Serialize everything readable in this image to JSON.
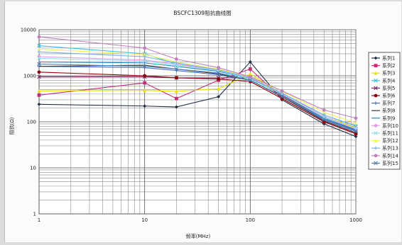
{
  "chart_data": {
    "type": "line",
    "title": "BSCFC1309阻抗曲线图",
    "xlabel": "频率(MHz)",
    "ylabel": "阻抗(Ω)",
    "x_scale": "log",
    "y_scale": "log",
    "xlim": [
      1,
      1000
    ],
    "ylim": [
      1,
      10000
    ],
    "x_ticks": [
      "1",
      "10",
      "100",
      "1000"
    ],
    "y_ticks": [
      "10000",
      "1000",
      "100",
      "10",
      "1"
    ],
    "grid": true,
    "legend_position": "right",
    "x": [
      1,
      10,
      20,
      50,
      100,
      200,
      500,
      1000
    ],
    "series": [
      {
        "name": "系列1",
        "color": "#1f2a44",
        "marker": "diamond",
        "values": [
          240,
          220,
          210,
          350,
          2000,
          300,
          90,
          48
        ]
      },
      {
        "name": "系列2",
        "color": "#c0307a",
        "marker": "square",
        "values": [
          380,
          700,
          320,
          800,
          1400,
          320,
          100,
          55
        ]
      },
      {
        "name": "系列3",
        "color": "#e8e000",
        "marker": "triangle",
        "values": [
          470,
          480,
          460,
          520,
          1100,
          400,
          130,
          75
        ]
      },
      {
        "name": "系列4",
        "color": "#3fbfe0",
        "marker": "x",
        "values": [
          4500,
          3000,
          1800,
          1300,
          900,
          420,
          140,
          80
        ]
      },
      {
        "name": "系列5",
        "color": "#7a2a6a",
        "marker": "x",
        "values": [
          950,
          950,
          900,
          900,
          900,
          380,
          120,
          68
        ]
      },
      {
        "name": "系列6",
        "color": "#8b0000",
        "marker": "circle",
        "values": [
          1200,
          1000,
          900,
          850,
          750,
          320,
          100,
          55
        ]
      },
      {
        "name": "系列7",
        "color": "#4a6fc0",
        "marker": "plus",
        "values": [
          1600,
          1500,
          1300,
          1050,
          800,
          350,
          110,
          62
        ]
      },
      {
        "name": "系列8",
        "color": "#3a3a3a",
        "marker": "none",
        "values": [
          1600,
          1700,
          1400,
          1100,
          800,
          350,
          105,
          58
        ]
      },
      {
        "name": "系列9",
        "color": "#1e8fc8",
        "marker": "none",
        "values": [
          2000,
          1900,
          1600,
          1250,
          850,
          400,
          120,
          65
        ]
      },
      {
        "name": "系列10",
        "color": "#e0a0e0",
        "marker": "circle",
        "values": [
          2600,
          2200,
          1800,
          1350,
          900,
          420,
          130,
          72
        ]
      },
      {
        "name": "系列11",
        "color": "#9adcf0",
        "marker": "x",
        "values": [
          2400,
          2100,
          1700,
          1300,
          850,
          400,
          125,
          70
        ]
      },
      {
        "name": "系列12",
        "color": "#f0f060",
        "marker": "triangle",
        "values": [
          3800,
          2900,
          2000,
          1400,
          950,
          460,
          160,
          95
        ]
      },
      {
        "name": "系列13",
        "color": "#80b0e0",
        "marker": "plus",
        "values": [
          3300,
          2600,
          1900,
          1350,
          900,
          420,
          140,
          82
        ]
      },
      {
        "name": "系列14",
        "color": "#c080c0",
        "marker": "circle",
        "values": [
          7000,
          4000,
          2300,
          1500,
          950,
          470,
          180,
          120
        ]
      },
      {
        "name": "系列15",
        "color": "#5080b0",
        "marker": "x",
        "values": [
          1800,
          1600,
          1400,
          1150,
          800,
          360,
          115,
          64
        ]
      }
    ]
  }
}
